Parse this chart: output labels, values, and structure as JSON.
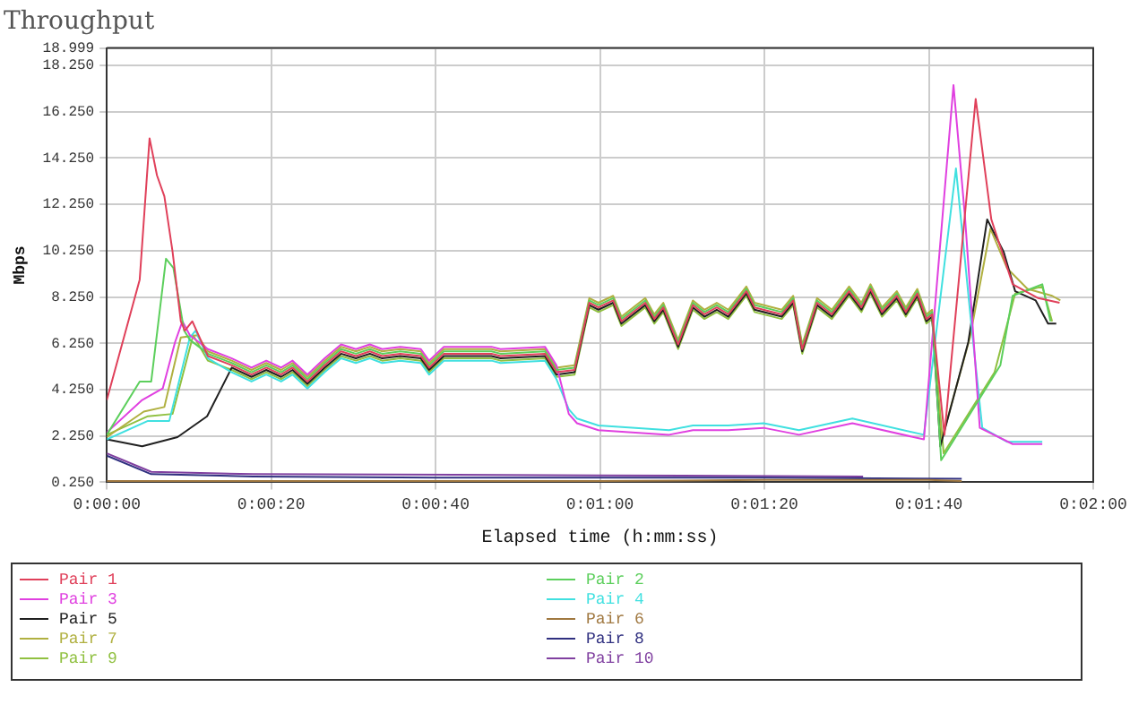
{
  "chart_data": {
    "type": "line",
    "title": "Throughput",
    "xlabel": "Elapsed time (h:mm:ss)",
    "ylabel": "Mbps",
    "xlim": [
      0,
      120
    ],
    "xticks": [
      {
        "value": 0,
        "label": "0:00:00"
      },
      {
        "value": 20,
        "label": "0:00:20"
      },
      {
        "value": 40,
        "label": "0:00:40"
      },
      {
        "value": 60,
        "label": "0:01:00"
      },
      {
        "value": 80,
        "label": "0:01:20"
      },
      {
        "value": 100,
        "label": "0:01:40"
      },
      {
        "value": 120,
        "label": "0:02:00"
      }
    ],
    "ylim": [
      0.25,
      18.999
    ],
    "yticks": [
      {
        "value": 0.25,
        "label": "0.250"
      },
      {
        "value": 2.25,
        "label": "2.250"
      },
      {
        "value": 4.25,
        "label": "4.250"
      },
      {
        "value": 6.25,
        "label": "6.250"
      },
      {
        "value": 8.25,
        "label": "8.250"
      },
      {
        "value": 10.25,
        "label": "10.250"
      },
      {
        "value": 12.25,
        "label": "12.250"
      },
      {
        "value": 14.25,
        "label": "14.250"
      },
      {
        "value": 16.25,
        "label": "16.250"
      },
      {
        "value": 18.25,
        "label": "18.250"
      },
      {
        "value": 18.999,
        "label": "18.999"
      }
    ],
    "grid": true,
    "legend": "bottom",
    "marker": "none",
    "line_style": "solid",
    "series": [
      {
        "name": "Pair 1",
        "color": "#e0405a",
        "x": [
          0,
          4,
          5.2,
          6.1,
          7,
          8,
          9,
          9.5,
          10.4,
          12.3,
          15.2,
          17.6,
          19.4,
          21.2,
          22.6,
          24.4,
          26.5,
          28.5,
          30.3,
          32,
          33.5,
          35.7,
          38.2,
          39.2,
          41,
          46.8,
          47.9,
          53.3,
          54.7,
          56.9,
          58.7,
          59.8,
          61.6,
          62.6,
          65.5,
          66.6,
          67.7,
          69.5,
          71.3,
          72.7,
          74.2,
          75.6,
          77.8,
          78.8,
          82.1,
          83.5,
          84.6,
          86.4,
          88.2,
          90.3,
          91.8,
          92.9,
          94.3,
          96.1,
          97.2,
          98.6,
          99.7,
          100.4,
          101.9,
          105.7,
          107.6,
          110.2,
          113.3,
          115.9
        ],
        "values": [
          3.8,
          9.0,
          15.1,
          13.5,
          12.6,
          10.2,
          7.2,
          6.8,
          7.2,
          5.7,
          5.3,
          4.9,
          5.2,
          4.9,
          5.2,
          4.6,
          5.3,
          5.9,
          5.7,
          5.9,
          5.7,
          5.8,
          5.7,
          5.2,
          5.8,
          5.8,
          5.7,
          5.8,
          5.0,
          5.1,
          8.0,
          7.8,
          8.1,
          7.2,
          8.0,
          7.3,
          7.8,
          6.2,
          7.9,
          7.5,
          7.8,
          7.5,
          8.5,
          7.8,
          7.5,
          8.1,
          6.0,
          8.0,
          7.5,
          8.5,
          7.8,
          8.6,
          7.6,
          8.3,
          7.6,
          8.4,
          7.3,
          7.5,
          2.3,
          16.8,
          11.6,
          8.8,
          8.2,
          8.0
        ]
      },
      {
        "name": "Pair 2",
        "color": "#5ccf5c",
        "x": [
          0,
          4,
          5.4,
          7.2,
          8.1,
          9.4,
          10.1,
          12.3,
          15.2,
          17.6,
          19.4,
          21.2,
          22.6,
          24.4,
          26.5,
          28.5,
          30.3,
          32,
          33.5,
          35.7,
          38.2,
          39.2,
          41,
          46.8,
          47.9,
          53.3,
          54.7,
          56.9,
          58.7,
          59.8,
          61.6,
          62.6,
          65.5,
          66.6,
          67.7,
          69.5,
          71.3,
          72.7,
          74.2,
          75.6,
          77.8,
          78.8,
          82.1,
          83.5,
          84.6,
          86.4,
          88.2,
          90.3,
          91.8,
          92.9,
          94.3,
          96.1,
          97.2,
          98.6,
          99.7,
          100.4,
          101.5,
          108.7,
          110.2,
          113.8,
          114.8
        ],
        "values": [
          2.3,
          4.6,
          4.6,
          9.9,
          9.5,
          6.8,
          6.4,
          5.8,
          5.4,
          5.0,
          5.3,
          5.0,
          5.3,
          4.7,
          5.4,
          6.0,
          5.8,
          6.0,
          5.8,
          5.9,
          5.8,
          5.3,
          5.9,
          5.9,
          5.8,
          5.9,
          5.1,
          5.2,
          8.1,
          7.9,
          8.2,
          7.3,
          8.1,
          7.4,
          7.9,
          6.3,
          8.0,
          7.6,
          7.9,
          7.6,
          8.6,
          7.9,
          7.6,
          8.2,
          6.1,
          8.1,
          7.6,
          8.6,
          7.9,
          8.7,
          7.7,
          8.4,
          7.7,
          8.5,
          7.4,
          7.6,
          1.2,
          5.3,
          8.3,
          8.8,
          7.2
        ]
      },
      {
        "name": "Pair 3",
        "color": "#e040e0",
        "x": [
          0,
          4.3,
          6.8,
          8.3,
          9.2,
          10.1,
          12.3,
          15.2,
          17.6,
          19.4,
          21.2,
          22.6,
          24.4,
          26.5,
          28.5,
          30.3,
          32,
          33.5,
          35.7,
          38.2,
          39.2,
          41,
          46.8,
          47.9,
          53.3,
          54.7,
          56.2,
          57.2,
          59.8,
          68.4,
          71.3,
          75.6,
          79.9,
          84.2,
          90.7,
          99.4,
          103,
          104.4,
          106.2,
          110.2,
          113.8
        ],
        "values": [
          2.4,
          3.8,
          4.3,
          6.3,
          7.2,
          6.6,
          6.0,
          5.6,
          5.2,
          5.5,
          5.2,
          5.5,
          4.9,
          5.6,
          6.2,
          6.0,
          6.2,
          6.0,
          6.1,
          6.0,
          5.5,
          6.1,
          6.1,
          6.0,
          6.1,
          5.3,
          3.2,
          2.8,
          2.5,
          2.3,
          2.5,
          2.5,
          2.6,
          2.3,
          2.8,
          2.1,
          17.4,
          11.7,
          2.6,
          1.9,
          1.9
        ]
      },
      {
        "name": "Pair 4",
        "color": "#40e0e0",
        "x": [
          0,
          5,
          7.6,
          10.1,
          10.8,
          12.3,
          15.2,
          17.6,
          19.4,
          21.2,
          22.6,
          24.4,
          26.5,
          28.5,
          30.3,
          32,
          33.5,
          35.7,
          38.2,
          39.2,
          41,
          46.8,
          47.9,
          53.3,
          54.7,
          56.2,
          57.2,
          59.8,
          68.4,
          71.3,
          75.6,
          79.9,
          84.2,
          90.7,
          99.4,
          103.3,
          105.1,
          106.5,
          109.5,
          113.8
        ],
        "values": [
          2.1,
          2.9,
          2.9,
          6.5,
          6.8,
          5.6,
          5.0,
          4.6,
          4.9,
          4.6,
          4.9,
          4.3,
          5.0,
          5.6,
          5.4,
          5.6,
          5.4,
          5.5,
          5.4,
          4.9,
          5.5,
          5.5,
          5.4,
          5.5,
          4.7,
          3.4,
          3.0,
          2.7,
          2.5,
          2.7,
          2.7,
          2.8,
          2.5,
          3.0,
          2.3,
          13.8,
          7.3,
          2.6,
          2.0,
          2.0
        ]
      },
      {
        "name": "Pair 5",
        "color": "#202020",
        "x": [
          0,
          4.3,
          8.6,
          12.2,
          15.2,
          17.6,
          19.4,
          21.2,
          22.6,
          24.4,
          26.5,
          28.5,
          30.3,
          32,
          33.5,
          35.7,
          38.2,
          39.2,
          41,
          46.8,
          47.9,
          53.3,
          54.7,
          56.9,
          58.7,
          59.8,
          61.6,
          62.6,
          65.5,
          66.6,
          67.7,
          69.5,
          71.3,
          72.7,
          74.2,
          75.6,
          77.8,
          78.8,
          82.1,
          83.5,
          84.6,
          86.4,
          88.2,
          90.3,
          91.8,
          92.9,
          94.3,
          96.1,
          97.2,
          98.6,
          99.7,
          100.4,
          101.4,
          104.8,
          107.1,
          109.1,
          110.5,
          113,
          114.5,
          115.5
        ],
        "values": [
          2.1,
          1.8,
          2.2,
          3.1,
          5.2,
          4.8,
          5.1,
          4.8,
          5.1,
          4.5,
          5.2,
          5.8,
          5.6,
          5.8,
          5.6,
          5.7,
          5.6,
          5.1,
          5.7,
          5.7,
          5.6,
          5.7,
          4.9,
          5.0,
          7.9,
          7.7,
          8.0,
          7.1,
          7.9,
          7.2,
          7.7,
          6.1,
          7.8,
          7.4,
          7.7,
          7.4,
          8.4,
          7.7,
          7.4,
          8.0,
          5.9,
          7.9,
          7.4,
          8.4,
          7.7,
          8.5,
          7.5,
          8.2,
          7.5,
          8.3,
          7.2,
          7.4,
          1.8,
          6.3,
          11.6,
          10.2,
          8.5,
          8.1,
          7.1,
          7.1
        ]
      },
      {
        "name": "Pair 6",
        "color": "#a07840",
        "x": [
          0,
          5,
          60,
          80,
          100,
          104
        ],
        "values": [
          0.3,
          0.3,
          0.3,
          0.35,
          0.35,
          0.3
        ]
      },
      {
        "name": "Pair 7",
        "color": "#b0b040",
        "x": [
          0,
          4.5,
          7,
          9,
          11,
          12.3,
          15.2,
          17.6,
          19.4,
          21.2,
          22.6,
          24.4,
          26.5,
          28.5,
          30.3,
          32,
          33.5,
          35.7,
          38.2,
          39.2,
          41,
          46.8,
          47.9,
          53.3,
          54.7,
          56.9,
          58.7,
          59.8,
          61.6,
          62.6,
          65.5,
          66.6,
          67.7,
          69.5,
          71.3,
          72.7,
          74.2,
          75.6,
          77.8,
          78.8,
          82.1,
          83.5,
          84.6,
          86.4,
          88.2,
          90.3,
          91.8,
          92.9,
          94.3,
          96.1,
          97.2,
          98.6,
          99.7,
          100.4,
          101.5,
          105,
          107.5,
          109.5,
          112,
          115,
          116
        ],
        "values": [
          2.2,
          3.3,
          3.5,
          6.5,
          6.6,
          5.9,
          5.5,
          5.1,
          5.4,
          5.1,
          5.4,
          4.8,
          5.5,
          6.1,
          5.9,
          6.1,
          5.9,
          6.0,
          5.9,
          5.4,
          6.0,
          6.0,
          5.9,
          6.0,
          5.2,
          5.3,
          8.2,
          8.0,
          8.3,
          7.4,
          8.2,
          7.5,
          8.0,
          6.4,
          8.1,
          7.7,
          8.0,
          7.7,
          8.7,
          8.0,
          7.7,
          8.3,
          6.2,
          8.2,
          7.7,
          8.7,
          8.0,
          8.8,
          7.8,
          8.5,
          7.8,
          8.6,
          7.5,
          7.7,
          2.0,
          6.5,
          11.2,
          9.5,
          8.6,
          8.3,
          8.1
        ]
      },
      {
        "name": "Pair 8",
        "color": "#303080",
        "x": [
          0,
          5.4,
          17.8,
          40,
          80,
          104
        ],
        "values": [
          1.4,
          0.6,
          0.5,
          0.45,
          0.45,
          0.4
        ]
      },
      {
        "name": "Pair 9",
        "color": "#90c040",
        "x": [
          0,
          5,
          8,
          10.5,
          12.3,
          15.2,
          17.6,
          19.4,
          21.2,
          22.6,
          24.4,
          26.5,
          28.5,
          30.3,
          32,
          33.5,
          35.7,
          38.2,
          39.2,
          41,
          46.8,
          47.9,
          53.3,
          54.7,
          56.9,
          58.7,
          59.8,
          61.6,
          62.6,
          65.5,
          66.6,
          67.7,
          69.5,
          71.3,
          72.7,
          74.2,
          75.6,
          77.8,
          78.8,
          82.1,
          83.5,
          84.6,
          86.4,
          88.2,
          90.3,
          91.8,
          92.9,
          94.3,
          96.1,
          97.2,
          98.6,
          99.7,
          100.4,
          101.8,
          108,
          110.5,
          113.8,
          115
        ],
        "values": [
          2.3,
          3.1,
          3.2,
          6.6,
          5.5,
          5.1,
          4.7,
          5.0,
          4.7,
          5.0,
          4.4,
          5.1,
          5.7,
          5.5,
          5.7,
          5.5,
          5.6,
          5.5,
          5.0,
          5.6,
          5.6,
          5.5,
          5.6,
          4.8,
          4.9,
          7.8,
          7.6,
          7.9,
          7.0,
          7.8,
          7.1,
          7.6,
          6.0,
          7.7,
          7.3,
          7.6,
          7.3,
          8.3,
          7.6,
          7.3,
          7.9,
          5.8,
          7.8,
          7.3,
          8.3,
          7.6,
          8.4,
          7.4,
          8.1,
          7.4,
          8.2,
          7.1,
          7.3,
          1.5,
          5.0,
          8.4,
          8.7,
          7.2
        ]
      },
      {
        "name": "Pair 10",
        "color": "#8040a0",
        "x": [
          0,
          5.4,
          17.8,
          60,
          92
        ],
        "values": [
          1.5,
          0.7,
          0.6,
          0.55,
          0.5
        ]
      }
    ]
  }
}
